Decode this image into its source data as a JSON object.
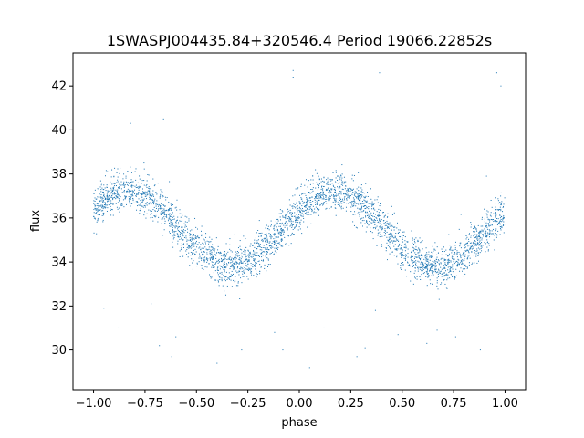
{
  "chart_data": {
    "type": "scatter",
    "title": "1SWASPJ004435.84+320546.4 Period 19066.22852s",
    "xlabel": "phase",
    "ylabel": "flux",
    "xlim": [
      -1.1,
      1.1
    ],
    "ylim": [
      28.2,
      43.5
    ],
    "xticks": [
      -1.0,
      -0.75,
      -0.5,
      -0.25,
      0.0,
      0.25,
      0.5,
      0.75,
      1.0
    ],
    "xtick_labels": [
      "−1.00",
      "−0.75",
      "−0.50",
      "−0.25",
      "0.00",
      "0.25",
      "0.50",
      "0.75",
      "1.00"
    ],
    "yticks": [
      30,
      32,
      34,
      36,
      38,
      40,
      42
    ],
    "ytick_labels": [
      "30",
      "32",
      "34",
      "36",
      "38",
      "40",
      "42"
    ],
    "grid": false,
    "legend": "none",
    "point_color": "#1f77b4",
    "model": {
      "description_values": "phase-folded light curve, approx. sinusoidal",
      "mean": 35.5,
      "amplitude": 1.7,
      "peak_phases": [
        -0.83,
        0.17
      ],
      "trough_phases": [
        -0.32,
        0.68
      ],
      "noise_sigma": 0.45,
      "n_points": 3400
    },
    "outliers": [
      {
        "x": -0.95,
        "y": 31.9
      },
      {
        "x": -0.88,
        "y": 31.0
      },
      {
        "x": -0.82,
        "y": 40.3
      },
      {
        "x": -0.72,
        "y": 32.1
      },
      {
        "x": -0.68,
        "y": 30.2
      },
      {
        "x": -0.66,
        "y": 40.5
      },
      {
        "x": -0.62,
        "y": 29.7
      },
      {
        "x": -0.6,
        "y": 30.6
      },
      {
        "x": -0.57,
        "y": 42.6
      },
      {
        "x": -0.52,
        "y": 35.0
      },
      {
        "x": -0.4,
        "y": 29.4
      },
      {
        "x": -0.28,
        "y": 30.0
      },
      {
        "x": -0.12,
        "y": 30.8
      },
      {
        "x": -0.08,
        "y": 30.0
      },
      {
        "x": -0.03,
        "y": 42.7
      },
      {
        "x": -0.03,
        "y": 42.4
      },
      {
        "x": 0.05,
        "y": 29.2
      },
      {
        "x": 0.12,
        "y": 31.0
      },
      {
        "x": 0.28,
        "y": 29.7
      },
      {
        "x": 0.32,
        "y": 30.1
      },
      {
        "x": 0.37,
        "y": 31.8
      },
      {
        "x": 0.39,
        "y": 42.6
      },
      {
        "x": 0.44,
        "y": 30.5
      },
      {
        "x": 0.48,
        "y": 30.7
      },
      {
        "x": 0.62,
        "y": 30.3
      },
      {
        "x": 0.68,
        "y": 32.3
      },
      {
        "x": 0.76,
        "y": 30.6
      },
      {
        "x": 0.88,
        "y": 30.0
      },
      {
        "x": 0.91,
        "y": 37.9
      },
      {
        "x": 0.96,
        "y": 42.6
      },
      {
        "x": 0.98,
        "y": 42.0
      },
      {
        "x": -0.46,
        "y": 35.0
      },
      {
        "x": 0.67,
        "y": 30.9
      }
    ]
  }
}
